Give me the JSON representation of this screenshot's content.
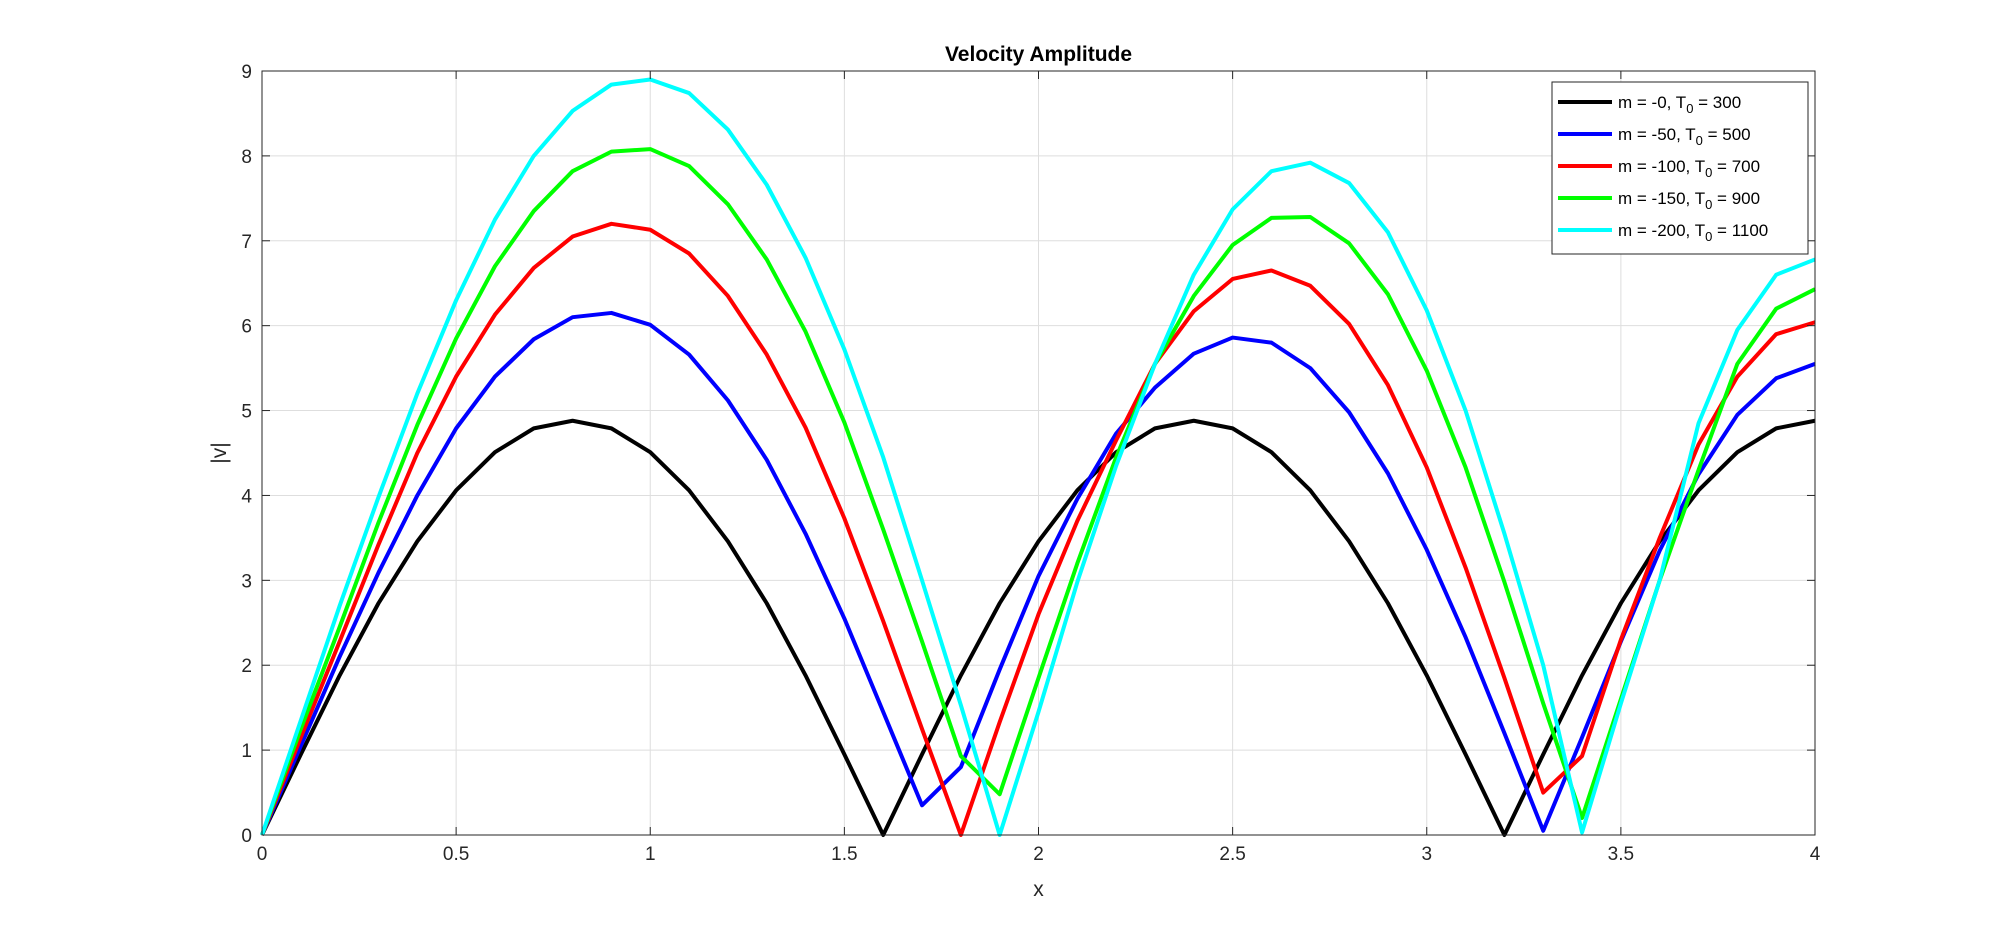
{
  "chart_data": {
    "type": "line",
    "title": "Velocity Amplitude",
    "xlabel": "x",
    "ylabel": "|v|",
    "xlim": [
      0,
      4
    ],
    "ylim": [
      0,
      9
    ],
    "xticks": [
      0,
      0.5,
      1,
      1.5,
      2,
      2.5,
      3,
      3.5,
      4
    ],
    "xtick_labels": [
      "0",
      "0.5",
      "1",
      "1.5",
      "2",
      "2.5",
      "3",
      "3.5",
      "4"
    ],
    "yticks": [
      0,
      1,
      2,
      3,
      4,
      5,
      6,
      7,
      8,
      9
    ],
    "ytick_labels": [
      "0",
      "1",
      "2",
      "3",
      "4",
      "5",
      "6",
      "7",
      "8",
      "9"
    ],
    "grid": true,
    "legend_position": "top-right",
    "x": [
      0,
      0.1,
      0.2,
      0.3,
      0.4,
      0.5,
      0.6,
      0.7,
      0.8,
      0.9,
      1.0,
      1.1,
      1.2,
      1.3,
      1.4,
      1.5,
      1.6,
      1.7,
      1.8,
      1.9,
      2.0,
      2.1,
      2.2,
      2.3,
      2.4,
      2.5,
      2.6,
      2.7,
      2.8,
      2.9,
      3.0,
      3.1,
      3.2,
      3.3,
      3.4,
      3.5,
      3.6,
      3.7,
      3.8,
      3.9,
      4.0
    ],
    "series": [
      {
        "name": "m = -0, T_0 = 300",
        "legend": {
          "pre": "m = -0, T",
          "sub": "0",
          "post": " = 300"
        },
        "color": "#000000",
        "values": [
          0,
          0.95,
          1.88,
          2.73,
          3.46,
          4.06,
          4.51,
          4.79,
          4.88,
          4.79,
          4.51,
          4.06,
          3.46,
          2.73,
          1.88,
          0.95,
          0,
          0.95,
          1.88,
          2.73,
          3.46,
          4.06,
          4.51,
          4.79,
          4.88,
          4.79,
          4.51,
          4.06,
          3.46,
          2.73,
          1.88,
          0.95,
          0,
          0.95,
          1.88,
          2.73,
          3.46,
          4.06,
          4.51,
          4.79,
          4.88
        ]
      },
      {
        "name": "m = -50, T_0 = 500",
        "legend": {
          "pre": "m = -50, T",
          "sub": "0",
          "post": " = 500"
        },
        "color": "#0000ff",
        "values": [
          0,
          1.05,
          2.1,
          3.09,
          4.0,
          4.79,
          5.4,
          5.84,
          6.1,
          6.15,
          6.01,
          5.66,
          5.12,
          4.42,
          3.55,
          2.55,
          1.45,
          0.35,
          0.8,
          1.95,
          3.05,
          3.96,
          4.73,
          5.27,
          5.67,
          5.86,
          5.8,
          5.5,
          4.98,
          4.26,
          3.36,
          2.33,
          1.2,
          0.05,
          1.15,
          2.28,
          3.35,
          4.25,
          4.95,
          5.38,
          5.55
        ]
      },
      {
        "name": "m = -100, T_0 = 700",
        "legend": {
          "pre": "m = -100, T",
          "sub": "0",
          "post": " = 700"
        },
        "color": "#ff0000",
        "values": [
          0,
          1.15,
          2.28,
          3.42,
          4.5,
          5.4,
          6.13,
          6.68,
          7.05,
          7.2,
          7.13,
          6.85,
          6.35,
          5.66,
          4.8,
          3.73,
          2.52,
          1.25,
          0,
          1.33,
          2.6,
          3.7,
          4.65,
          5.55,
          6.17,
          6.55,
          6.65,
          6.47,
          6.02,
          5.3,
          4.33,
          3.15,
          1.85,
          0.5,
          0.93,
          2.3,
          3.5,
          4.6,
          5.4,
          5.9,
          6.04
        ]
      },
      {
        "name": "m = -150, T_0 = 900",
        "legend": {
          "pre": "m = -150, T",
          "sub": "0",
          "post": " = 900"
        },
        "color": "#00ff00",
        "values": [
          0,
          1.25,
          2.45,
          3.68,
          4.83,
          5.85,
          6.7,
          7.35,
          7.82,
          8.05,
          8.08,
          7.88,
          7.43,
          6.78,
          5.93,
          4.86,
          3.6,
          2.28,
          0.93,
          0.48,
          1.85,
          3.2,
          4.45,
          5.55,
          6.35,
          6.95,
          7.27,
          7.28,
          6.97,
          6.37,
          5.47,
          4.33,
          2.98,
          1.55,
          0.2,
          1.6,
          3.0,
          4.3,
          5.55,
          6.2,
          6.43
        ]
      },
      {
        "name": "m = -200, T_0 = 1100",
        "legend": {
          "pre": "m = -200, T",
          "sub": "0",
          "post": " = 1100"
        },
        "color": "#00ffff",
        "values": [
          0,
          1.35,
          2.7,
          3.98,
          5.2,
          6.3,
          7.25,
          8.0,
          8.53,
          8.84,
          8.9,
          8.74,
          8.31,
          7.66,
          6.8,
          5.72,
          4.45,
          3.0,
          1.53,
          0,
          1.45,
          2.98,
          4.35,
          5.55,
          6.6,
          7.37,
          7.82,
          7.92,
          7.68,
          7.1,
          6.18,
          5.0,
          3.55,
          2.0,
          0.03,
          1.55,
          3.0,
          4.85,
          5.95,
          6.6,
          6.78
        ]
      }
    ]
  }
}
